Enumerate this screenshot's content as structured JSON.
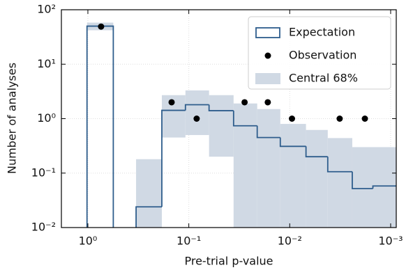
{
  "chart_data": {
    "type": "histogram",
    "xlabel": "Pre-trial p-value",
    "ylabel": "Number of analyses",
    "xlog": true,
    "ylog": true,
    "grid": true,
    "legend": "upper right",
    "xlim": [
      1.83,
      0.00088
    ],
    "ylim": [
      0.01,
      100
    ],
    "xticks": [
      {
        "value": 1,
        "label": "10⁰"
      },
      {
        "value": 0.1,
        "label": "10⁻¹"
      },
      {
        "value": 0.01,
        "label": "10⁻²"
      },
      {
        "value": 0.001,
        "label": "10⁻³"
      }
    ],
    "yticks": [
      {
        "value": 0.01,
        "label": "10⁻²"
      },
      {
        "value": 0.1,
        "label": "10⁻¹"
      },
      {
        "value": 1,
        "label": "10⁰"
      },
      {
        "value": 10,
        "label": "10¹"
      },
      {
        "value": 100,
        "label": "10²"
      }
    ],
    "bins": [
      1.02,
      0.56,
      0.333,
      0.185,
      0.108,
      0.063,
      0.036,
      0.021,
      0.0124,
      0.0069,
      0.0042,
      0.0024,
      0.0015,
      0.00088
    ],
    "series": [
      {
        "name": "Expectation",
        "color": "#2e5d8c",
        "values": [
          50,
          null,
          0.024,
          1.42,
          1.8,
          1.4,
          0.74,
          0.45,
          0.31,
          0.2,
          0.106,
          0.052,
          0.058
        ]
      },
      {
        "name": "Observation",
        "color": "#000000",
        "x": [
          0.74,
          0.148,
          0.0836,
          0.028,
          0.0165,
          0.0095,
          0.0032,
          0.0018
        ],
        "values": [
          49,
          2,
          1,
          2,
          2,
          1,
          1,
          1
        ]
      },
      {
        "name": "Central 68%",
        "color": "#d0d9e4",
        "lower": [
          42,
          null,
          0,
          0.45,
          0.5,
          0.2,
          0,
          0,
          0,
          0,
          0,
          0,
          0
        ],
        "upper": [
          58,
          null,
          0.18,
          2.7,
          3.3,
          2.7,
          1.9,
          1.5,
          0.8,
          0.62,
          0.44,
          0.3,
          0.3
        ]
      }
    ]
  }
}
